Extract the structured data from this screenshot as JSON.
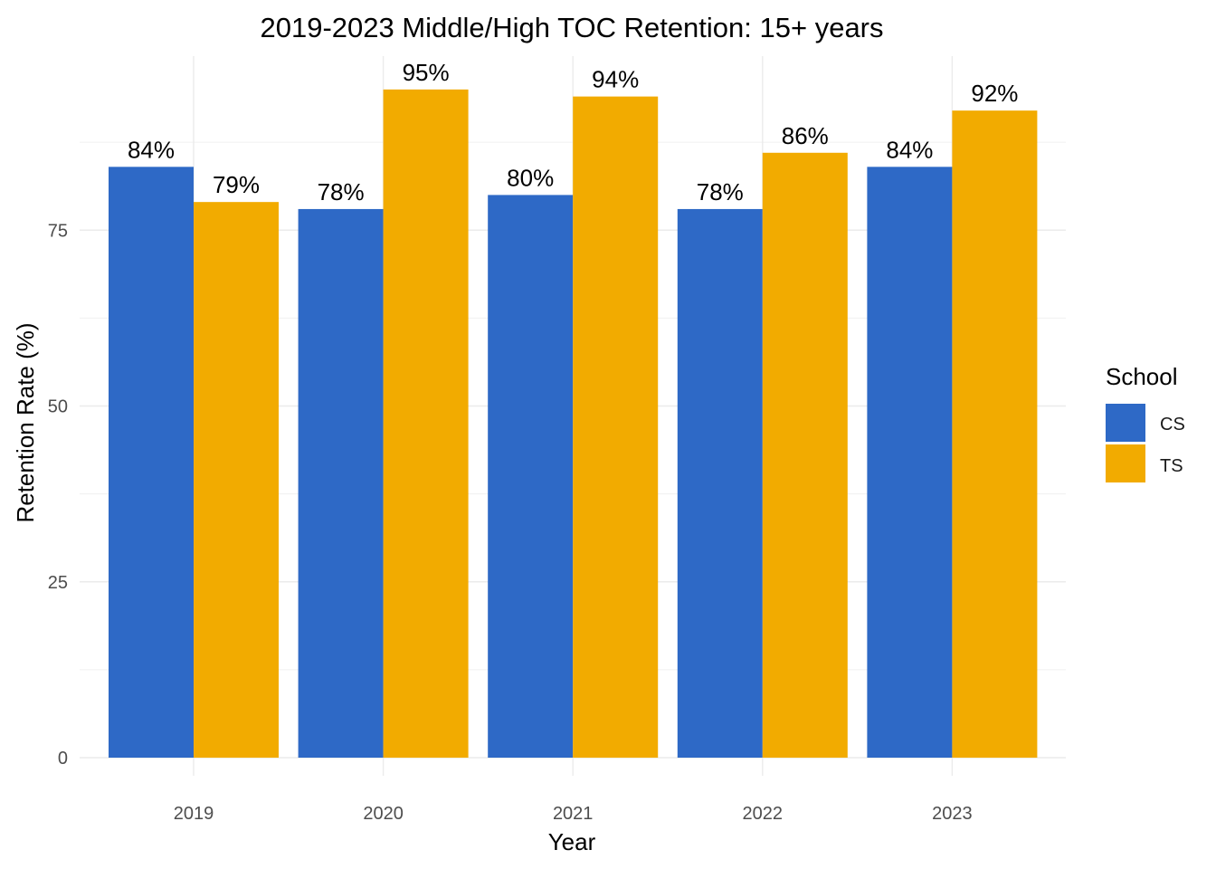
{
  "chart_data": {
    "type": "bar",
    "title": "2019-2023 Middle/High TOC Retention: 15+ years",
    "xlabel": "Year",
    "ylabel": "Retention Rate (%)",
    "categories": [
      "2019",
      "2020",
      "2021",
      "2022",
      "2023"
    ],
    "series": [
      {
        "name": "CS",
        "color": "#2E69C6",
        "values": [
          84,
          78,
          80,
          78,
          84
        ],
        "labels": [
          "84%",
          "78%",
          "80%",
          "78%",
          "84%"
        ]
      },
      {
        "name": "TS",
        "color": "#F2AB00",
        "values": [
          79,
          95,
          94,
          86,
          92
        ],
        "labels": [
          "79%",
          "95%",
          "94%",
          "86%",
          "92%"
        ]
      }
    ],
    "ylim": [
      0,
      100
    ],
    "yticks": [
      0,
      25,
      50,
      75
    ],
    "ytick_labels": [
      "0",
      "25",
      "50",
      "75"
    ],
    "grid": true,
    "legend": {
      "title": "School",
      "position": "right"
    }
  }
}
